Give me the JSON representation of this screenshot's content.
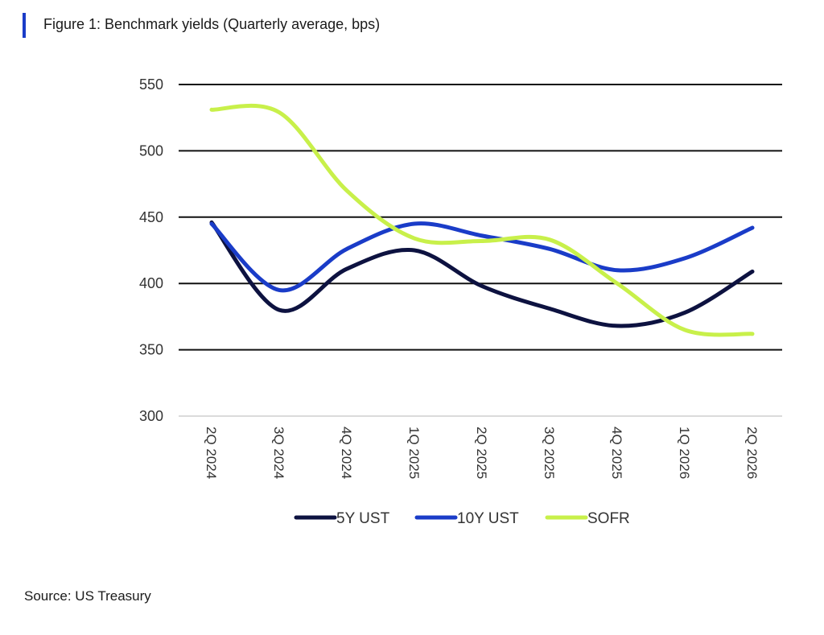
{
  "figure": {
    "title": "Figure 1: Benchmark yields (Quarterly average, bps)",
    "accent_color": "#1a3cc8"
  },
  "source": "Source: US Treasury",
  "chart_data": {
    "type": "line",
    "title": "Figure 1: Benchmark yields (Quarterly average, bps)",
    "xlabel": "",
    "ylabel": "",
    "categories": [
      "2Q 2024",
      "3Q 2024",
      "4Q 2024",
      "1Q 2025",
      "2Q 2025",
      "3Q 2025",
      "4Q 2025",
      "1Q 2026",
      "2Q 2026"
    ],
    "ylim": [
      300,
      550
    ],
    "yticks": [
      300,
      350,
      400,
      450,
      500,
      550
    ],
    "grid": "horizontal",
    "legend_position": "bottom",
    "series": [
      {
        "name": "5Y UST",
        "color": "#0d1240",
        "values": [
          446,
          380,
          411,
          425,
          398,
          381,
          368,
          378,
          409
        ]
      },
      {
        "name": "10Y UST",
        "color": "#1a3cc8",
        "values": [
          445,
          395,
          426,
          445,
          436,
          426,
          410,
          419,
          442
        ]
      },
      {
        "name": "SOFR",
        "color": "#c8f04a",
        "values": [
          531,
          529,
          470,
          434,
          432,
          433,
          400,
          365,
          362
        ]
      }
    ]
  }
}
